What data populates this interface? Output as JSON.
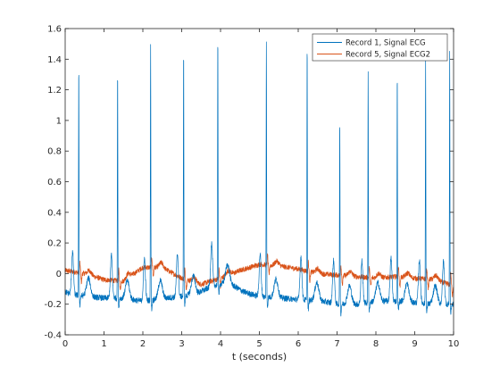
{
  "chart_data": {
    "type": "line",
    "xlabel": "t (seconds)",
    "ylabel": "",
    "title": "",
    "xlim": [
      0,
      10
    ],
    "ylim": [
      -0.4,
      1.6
    ],
    "x_ticks": [
      0,
      1,
      2,
      3,
      4,
      5,
      6,
      7,
      8,
      9,
      10
    ],
    "y_ticks": [
      -0.4,
      -0.2,
      0,
      0.2,
      0.4,
      0.6,
      0.8,
      1,
      1.2,
      1.4,
      1.6
    ],
    "y_tick_labels": [
      "-0.4",
      "-0.2",
      "0",
      "0.2",
      "0.4",
      "0.6",
      "0.8",
      "1",
      "1.2",
      "1.4",
      "1.6"
    ],
    "grid": false,
    "legend_position": "top-right",
    "series": [
      {
        "name": "Record 1, Signal ECG",
        "color": "#0072BD",
        "baseline_points": [
          [
            0,
            -0.12
          ],
          [
            0.2,
            -0.14
          ],
          [
            0.6,
            -0.15
          ],
          [
            1.0,
            -0.16
          ],
          [
            1.4,
            -0.16
          ],
          [
            2.0,
            -0.18
          ],
          [
            2.6,
            -0.16
          ],
          [
            3.0,
            -0.15
          ],
          [
            3.4,
            -0.13
          ],
          [
            3.8,
            -0.08
          ],
          [
            4.2,
            -0.06
          ],
          [
            4.6,
            -0.12
          ],
          [
            5.0,
            -0.15
          ],
          [
            5.6,
            -0.16
          ],
          [
            6.0,
            -0.17
          ],
          [
            6.6,
            -0.18
          ],
          [
            7.0,
            -0.2
          ],
          [
            7.6,
            -0.2
          ],
          [
            8.0,
            -0.18
          ],
          [
            8.6,
            -0.18
          ],
          [
            9.0,
            -0.19
          ],
          [
            9.5,
            -0.2
          ],
          [
            10.0,
            -0.2
          ]
        ],
        "beats": [
          {
            "t": 0.35,
            "peak": 1.37
          },
          {
            "t": 1.35,
            "peak": 1.34
          },
          {
            "t": 2.2,
            "peak": 1.5
          },
          {
            "t": 3.05,
            "peak": 1.47
          },
          {
            "t": 3.93,
            "peak": 1.55
          },
          {
            "t": 5.18,
            "peak": 1.52
          },
          {
            "t": 6.23,
            "peak": 1.52
          },
          {
            "t": 7.07,
            "peak": 1.0
          },
          {
            "t": 7.8,
            "peak": 1.33
          },
          {
            "t": 8.55,
            "peak": 1.31
          },
          {
            "t": 9.28,
            "peak": 1.4
          },
          {
            "t": 9.9,
            "peak": 1.45
          }
        ]
      },
      {
        "name": "Record 5, Signal ECG2",
        "color": "#D95319",
        "baseline_points": [
          [
            0,
            0.02
          ],
          [
            0.5,
            0.0
          ],
          [
            1.0,
            -0.04
          ],
          [
            1.5,
            -0.05
          ],
          [
            2.0,
            0.04
          ],
          [
            2.5,
            0.04
          ],
          [
            3.0,
            -0.03
          ],
          [
            3.5,
            -0.07
          ],
          [
            4.0,
            -0.03
          ],
          [
            4.5,
            0.02
          ],
          [
            5.0,
            0.06
          ],
          [
            5.5,
            0.05
          ],
          [
            6.0,
            0.03
          ],
          [
            6.5,
            0.0
          ],
          [
            7.0,
            -0.01
          ],
          [
            7.5,
            -0.02
          ],
          [
            8.0,
            -0.03
          ],
          [
            8.5,
            -0.02
          ],
          [
            9.0,
            -0.03
          ],
          [
            9.5,
            -0.04
          ],
          [
            10.0,
            -0.08
          ]
        ],
        "beats": [
          0.4,
          1.4,
          2.25,
          3.1,
          3.98,
          5.23,
          6.28,
          7.12,
          7.85,
          8.6,
          9.33,
          9.95
        ]
      }
    ]
  }
}
